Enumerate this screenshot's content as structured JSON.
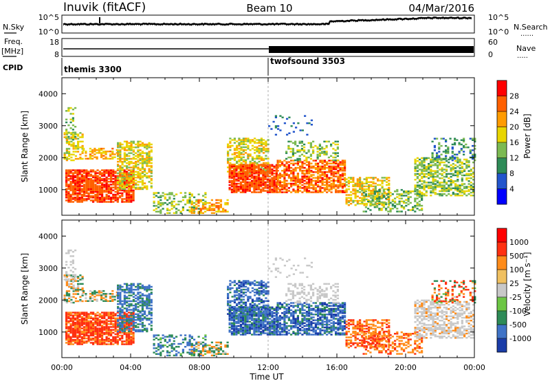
{
  "header": {
    "station": "Inuvik (fitACF)",
    "beam": "Beam 10",
    "date": "04/Mar/2016"
  },
  "noise_panel": {
    "left_label": "N.Sky",
    "right_label": "N.Search",
    "left_ticks": [
      "10^5",
      "10^0"
    ],
    "right_ticks": [
      "10^5",
      "10^0"
    ]
  },
  "freq_panel": {
    "left_label": "Freq.",
    "left_unit": "[MHz]",
    "left_ticks": [
      "18",
      "8"
    ],
    "right_label": "Nave",
    "right_ticks": [
      "60",
      "0"
    ]
  },
  "cpid_panel": {
    "label": "CPID",
    "segments": [
      {
        "name": "themis 3300",
        "start_hour": 0
      },
      {
        "name": "twofsound 3503",
        "start_hour": 12
      }
    ]
  },
  "chart_data": [
    {
      "type": "heatmap",
      "name": "power",
      "ylabel": "Slant Range [km]",
      "xlabel": "",
      "ylim": [
        200,
        4500
      ],
      "xlim": [
        0,
        24
      ],
      "yticks": [
        "1000",
        "2000",
        "3000",
        "4000"
      ],
      "colorbar": {
        "label": "Power [dB]",
        "ticks": [
          "4",
          "8",
          "12",
          "16",
          "20",
          "24",
          "28"
        ],
        "range": [
          0,
          32
        ],
        "colors": [
          "#0000ff",
          "#2255cc",
          "#2e8b57",
          "#7cba52",
          "#e8d500",
          "#ff9b00",
          "#ff6000",
          "#ff0000"
        ]
      }
    },
    {
      "type": "heatmap",
      "name": "velocity",
      "ylabel": "Slant Range [km]",
      "xlabel": "Time UT",
      "ylim": [
        200,
        4500
      ],
      "xlim": [
        0,
        24
      ],
      "yticks": [
        "1000",
        "2000",
        "3000",
        "4000"
      ],
      "xticks": [
        "00:00",
        "04:00",
        "08:00",
        "12:00",
        "16:00",
        "20:00",
        "00:00"
      ],
      "colorbar": {
        "label": "Velocity [m s⁻¹]",
        "ticks": [
          "1000",
          "500",
          "100",
          "25",
          "-25",
          "-100",
          "-500",
          "-1000"
        ],
        "colors": [
          "#1a3ca8",
          "#3f73c6",
          "#2e8b57",
          "#6cc644",
          "#c8c8c8",
          "#f0c060",
          "#ff8c1a",
          "#ff3010",
          "#ff0000"
        ]
      }
    }
  ]
}
